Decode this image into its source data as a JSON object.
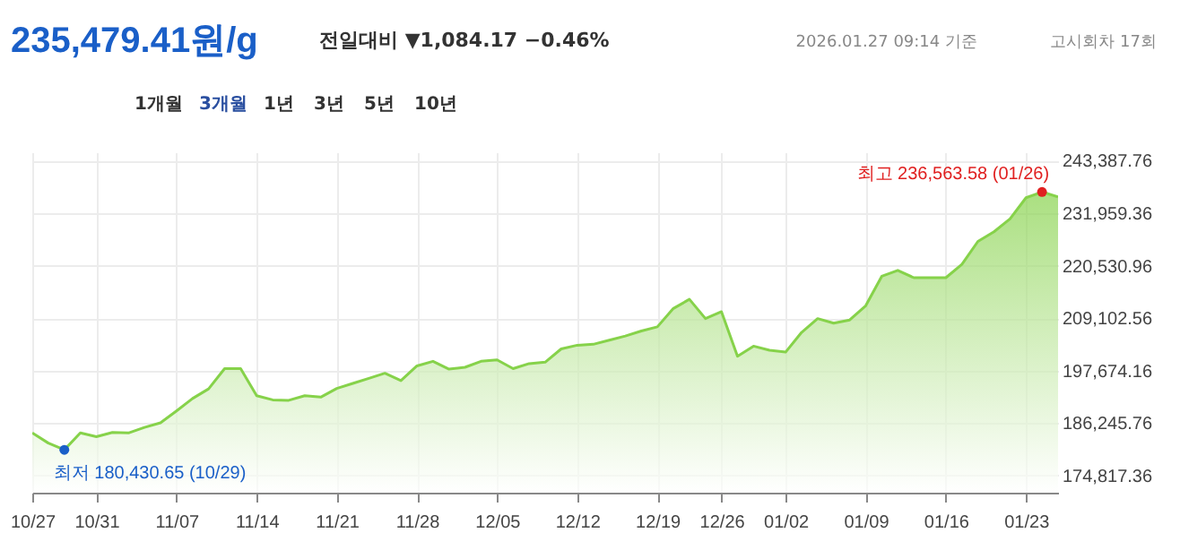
{
  "chart_data": {
    "type": "area",
    "title": "235,479.41원/g",
    "subtitle": "전일대비 ▼1,084.17 −0.46%",
    "categories": [
      "10/27",
      null,
      null,
      null,
      "10/31",
      null,
      null,
      null,
      null,
      "11/07",
      null,
      null,
      null,
      null,
      "11/14",
      null,
      null,
      null,
      null,
      "11/21",
      null,
      null,
      null,
      null,
      "11/28",
      null,
      null,
      null,
      null,
      "12/05",
      null,
      null,
      null,
      null,
      "12/12",
      null,
      null,
      null,
      null,
      "12/19",
      null,
      null,
      null,
      "12/26",
      null,
      null,
      null,
      "01/02",
      null,
      null,
      null,
      null,
      "01/09",
      null,
      null,
      null,
      null,
      "01/16",
      null,
      null,
      null,
      null,
      "01/23",
      null,
      null
    ],
    "series": [
      {
        "color": "#86d24a",
        "values": [
          184100,
          181900,
          180430.65,
          184100,
          183300,
          184200,
          184100,
          185300,
          186300,
          188900,
          191600,
          193700,
          198100,
          198100,
          192200,
          191300,
          191200,
          192200,
          191900,
          193800,
          194900,
          196000,
          197100,
          195500,
          198700,
          199700,
          198000,
          198400,
          199700,
          200000,
          198100,
          199200,
          199500,
          202400,
          203200,
          203400,
          204300,
          205200,
          206300,
          207200,
          211200,
          213200,
          209000,
          210500,
          200800,
          203000,
          202100,
          201700,
          206000,
          209000,
          208000,
          208700,
          211800,
          218200,
          219500,
          217900,
          217900,
          217900,
          220800,
          225800,
          227900,
          230700,
          235300,
          236563.58,
          235479.41
        ]
      },
      {
        "type": "scatter",
        "colors": [
          null,
          null,
          "#1a5fc8",
          null,
          null,
          null,
          null,
          null,
          null,
          null,
          null,
          null,
          null,
          null,
          null,
          null,
          null,
          null,
          null,
          null,
          null,
          null,
          null,
          null,
          null,
          null,
          null,
          null,
          null,
          null,
          null,
          null,
          null,
          null,
          null,
          null,
          null,
          null,
          null,
          null,
          null,
          null,
          null,
          null,
          null,
          null,
          null,
          null,
          null,
          null,
          null,
          null,
          null,
          null,
          null,
          null,
          null,
          null,
          null,
          null,
          null,
          null,
          null,
          "#e02020",
          null
        ],
        "values": [
          null,
          null,
          180430.65,
          null,
          null,
          null,
          null,
          null,
          null,
          null,
          null,
          null,
          null,
          null,
          null,
          null,
          null,
          null,
          null,
          null,
          null,
          null,
          null,
          null,
          null,
          null,
          null,
          null,
          null,
          null,
          null,
          null,
          null,
          null,
          null,
          null,
          null,
          null,
          null,
          null,
          null,
          null,
          null,
          null,
          null,
          null,
          null,
          null,
          null,
          null,
          null,
          null,
          null,
          null,
          null,
          null,
          null,
          null,
          null,
          null,
          null,
          null,
          null,
          236563.58,
          null
        ],
        "value_labels": [
          null,
          null,
          "최저 180,430.65 (10/29)",
          null,
          null,
          null,
          null,
          null,
          null,
          null,
          null,
          null,
          null,
          null,
          null,
          null,
          null,
          null,
          null,
          null,
          null,
          null,
          null,
          null,
          null,
          null,
          null,
          null,
          null,
          null,
          null,
          null,
          null,
          null,
          null,
          null,
          null,
          null,
          null,
          null,
          null,
          null,
          null,
          null,
          null,
          null,
          null,
          null,
          null,
          null,
          null,
          null,
          null,
          null,
          null,
          null,
          null,
          null,
          null,
          null,
          null,
          null,
          null,
          "최고 236,563.58 (01/26)",
          null
        ]
      }
    ],
    "ylim": [
      171100,
      245200
    ],
    "yticks": [
      {
        "value": 174817.36,
        "label": "174,817.36"
      },
      {
        "value": 186245.76,
        "label": "186,245.76"
      },
      {
        "value": 197674.16,
        "label": "197,674.16"
      },
      {
        "value": 209102.56,
        "label": "209,102.56"
      },
      {
        "value": 220530.96,
        "label": "220,530.96"
      },
      {
        "value": 231959.36,
        "label": "231,959.36"
      },
      {
        "value": 243387.76,
        "label": "243,387.76"
      }
    ],
    "grid": true,
    "annotations": [
      "2026.01.27 09:14 기준",
      "고시회차 17회",
      "1개월",
      "3개월",
      "1년",
      "3년",
      "5년",
      "10년"
    ]
  }
}
